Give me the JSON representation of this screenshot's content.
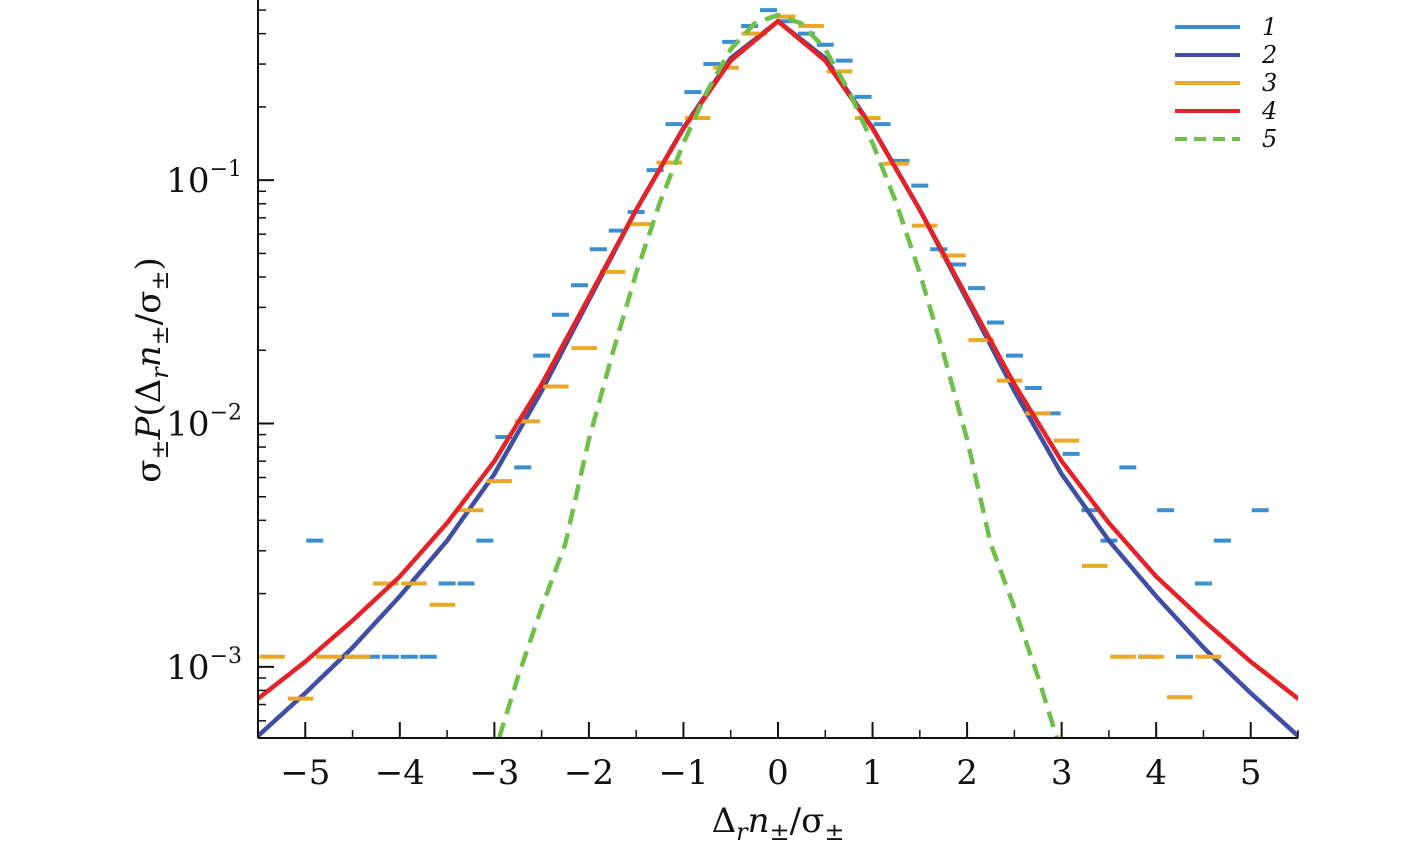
{
  "chart_data": {
    "type": "line",
    "xlabel": "Δ_r n_±/σ_±",
    "ylabel": "σ_± P(Δ_r n_±/σ_±)",
    "y_scale": "log",
    "xlim": [
      -5.5,
      5.5
    ],
    "ylim": [
      0.00051,
      0.55
    ],
    "grid": false,
    "legend_position": "top-right",
    "x_ticks": [
      -5,
      -4,
      -3,
      -2,
      -1,
      0,
      1,
      2,
      3,
      4,
      5
    ],
    "x_tick_labels": [
      "−5",
      "−4",
      "−3",
      "−2",
      "−1",
      "0",
      "1",
      "2",
      "3",
      "4",
      "5"
    ],
    "y_ticks": [
      0.001,
      0.01,
      0.1
    ],
    "y_tick_labels": [
      {
        "base": "10",
        "exp": "−3"
      },
      {
        "base": "10",
        "exp": "−2"
      },
      {
        "base": "10",
        "exp": "−1"
      }
    ],
    "colors": {
      "s1": "#3b8fd1",
      "s2": "#3f4fa3",
      "s3": "#e9a825",
      "s4": "#e42329",
      "s5": "#6ec04a"
    },
    "series": [
      {
        "name": "1",
        "kind": "histogram",
        "bin_width": 0.2,
        "color": "#3b8fd1",
        "points": [
          [
            -4.9,
            0.0033
          ],
          [
            -4.5,
            0.0011
          ],
          [
            -4.3,
            0.0011
          ],
          [
            -4.1,
            0.0011
          ],
          [
            -3.9,
            0.0011
          ],
          [
            -3.7,
            0.0011
          ],
          [
            -3.5,
            0.0022
          ],
          [
            -3.3,
            0.0022
          ],
          [
            -3.1,
            0.0033
          ],
          [
            -2.9,
            0.0088
          ],
          [
            -2.7,
            0.0066
          ],
          [
            -2.5,
            0.019
          ],
          [
            -2.3,
            0.028
          ],
          [
            -2.1,
            0.037
          ],
          [
            -1.9,
            0.052
          ],
          [
            -1.7,
            0.062
          ],
          [
            -1.5,
            0.074
          ],
          [
            -1.3,
            0.11
          ],
          [
            -1.1,
            0.17
          ],
          [
            -0.9,
            0.23
          ],
          [
            -0.7,
            0.3
          ],
          [
            -0.5,
            0.37
          ],
          [
            -0.3,
            0.43
          ],
          [
            -0.1,
            0.5
          ],
          [
            0.1,
            0.45
          ],
          [
            0.3,
            0.4
          ],
          [
            0.5,
            0.36
          ],
          [
            0.7,
            0.31
          ],
          [
            0.9,
            0.22
          ],
          [
            1.1,
            0.17
          ],
          [
            1.3,
            0.12
          ],
          [
            1.5,
            0.095
          ],
          [
            1.7,
            0.052
          ],
          [
            1.9,
            0.045
          ],
          [
            2.1,
            0.036
          ],
          [
            2.3,
            0.026
          ],
          [
            2.5,
            0.019
          ],
          [
            2.7,
            0.014
          ],
          [
            2.9,
            0.011
          ],
          [
            3.1,
            0.0075
          ],
          [
            3.3,
            0.0044
          ],
          [
            3.5,
            0.0033
          ],
          [
            3.7,
            0.0066
          ],
          [
            3.9,
            0.0011
          ],
          [
            4.1,
            0.0044
          ],
          [
            4.3,
            0.0011
          ],
          [
            4.5,
            0.0022
          ],
          [
            4.7,
            0.0033
          ],
          [
            5.1,
            0.0044
          ]
        ]
      },
      {
        "name": "2",
        "kind": "line",
        "color": "#3f4fa3",
        "points": [
          [
            -5.5,
            0.00052
          ],
          [
            -5.0,
            0.00078
          ],
          [
            -4.5,
            0.0012
          ],
          [
            -4.0,
            0.00195
          ],
          [
            -3.5,
            0.0033
          ],
          [
            -3.0,
            0.0062
          ],
          [
            -2.5,
            0.0136
          ],
          [
            -2.0,
            0.0322
          ],
          [
            -1.5,
            0.0755
          ],
          [
            -1.0,
            0.164
          ],
          [
            -0.5,
            0.317
          ],
          [
            0.0,
            0.45
          ],
          [
            0.5,
            0.317
          ],
          [
            1.0,
            0.164
          ],
          [
            1.5,
            0.0755
          ],
          [
            2.0,
            0.0322
          ],
          [
            2.5,
            0.0136
          ],
          [
            3.0,
            0.0062
          ],
          [
            3.5,
            0.0033
          ],
          [
            4.0,
            0.00195
          ],
          [
            4.5,
            0.0012
          ],
          [
            5.0,
            0.00078
          ],
          [
            5.5,
            0.00052
          ]
        ]
      },
      {
        "name": "3",
        "kind": "histogram",
        "bin_width": 0.3,
        "color": "#e9a825",
        "points": [
          [
            -5.35,
            0.0011
          ],
          [
            -5.05,
            0.00074
          ],
          [
            -4.75,
            0.0011
          ],
          [
            -4.45,
            0.0011
          ],
          [
            -4.15,
            0.0022
          ],
          [
            -3.85,
            0.0022
          ],
          [
            -3.55,
            0.0018
          ],
          [
            -3.25,
            0.0044
          ],
          [
            -2.95,
            0.0058
          ],
          [
            -2.65,
            0.0102
          ],
          [
            -2.35,
            0.0142
          ],
          [
            -2.05,
            0.0204
          ],
          [
            -1.75,
            0.042
          ],
          [
            -1.45,
            0.066
          ],
          [
            -1.15,
            0.118
          ],
          [
            -0.85,
            0.18
          ],
          [
            -0.55,
            0.29
          ],
          [
            -0.25,
            0.4
          ],
          [
            0.05,
            0.47
          ],
          [
            0.35,
            0.43
          ],
          [
            0.65,
            0.28
          ],
          [
            0.95,
            0.18
          ],
          [
            1.25,
            0.117
          ],
          [
            1.55,
            0.065
          ],
          [
            1.85,
            0.049
          ],
          [
            2.15,
            0.022
          ],
          [
            2.45,
            0.015
          ],
          [
            2.75,
            0.011
          ],
          [
            3.05,
            0.0085
          ],
          [
            3.35,
            0.0026
          ],
          [
            3.65,
            0.0011
          ],
          [
            3.95,
            0.0011
          ],
          [
            4.25,
            0.00075
          ],
          [
            4.55,
            0.0011
          ]
        ]
      },
      {
        "name": "4",
        "kind": "line",
        "color": "#e42329",
        "points": [
          [
            -5.5,
            0.00074
          ],
          [
            -5.0,
            0.00105
          ],
          [
            -4.5,
            0.00155
          ],
          [
            -4.0,
            0.00235
          ],
          [
            -3.5,
            0.0039
          ],
          [
            -3.0,
            0.007
          ],
          [
            -2.5,
            0.0145
          ],
          [
            -2.0,
            0.033
          ],
          [
            -1.5,
            0.0755
          ],
          [
            -1.0,
            0.163
          ],
          [
            -0.5,
            0.31
          ],
          [
            0.0,
            0.45
          ],
          [
            0.5,
            0.31
          ],
          [
            1.0,
            0.163
          ],
          [
            1.5,
            0.0755
          ],
          [
            2.0,
            0.033
          ],
          [
            2.5,
            0.0145
          ],
          [
            3.0,
            0.007
          ],
          [
            3.5,
            0.0039
          ],
          [
            4.0,
            0.00235
          ],
          [
            4.5,
            0.00155
          ],
          [
            5.0,
            0.00105
          ],
          [
            5.5,
            0.00074
          ]
        ]
      },
      {
        "name": "5",
        "kind": "line",
        "dashed": true,
        "color": "#6ec04a",
        "points": [
          [
            -2.95,
            0.00051
          ],
          [
            -2.75,
            0.00091
          ],
          [
            -2.5,
            0.00175
          ],
          [
            -2.25,
            0.0032
          ],
          [
            -2.0,
            0.0086
          ],
          [
            -1.75,
            0.0194
          ],
          [
            -1.5,
            0.0415
          ],
          [
            -1.25,
            0.0808
          ],
          [
            -1.0,
            0.142
          ],
          [
            -0.75,
            0.232
          ],
          [
            -0.5,
            0.345
          ],
          [
            -0.25,
            0.44
          ],
          [
            0.0,
            0.478
          ],
          [
            0.25,
            0.44
          ],
          [
            0.5,
            0.345
          ],
          [
            0.75,
            0.232
          ],
          [
            1.0,
            0.142
          ],
          [
            1.25,
            0.0808
          ],
          [
            1.5,
            0.0415
          ],
          [
            1.75,
            0.0194
          ],
          [
            2.0,
            0.0086
          ],
          [
            2.25,
            0.0032
          ],
          [
            2.5,
            0.00175
          ],
          [
            2.75,
            0.00091
          ],
          [
            2.95,
            0.00051
          ]
        ]
      }
    ]
  }
}
